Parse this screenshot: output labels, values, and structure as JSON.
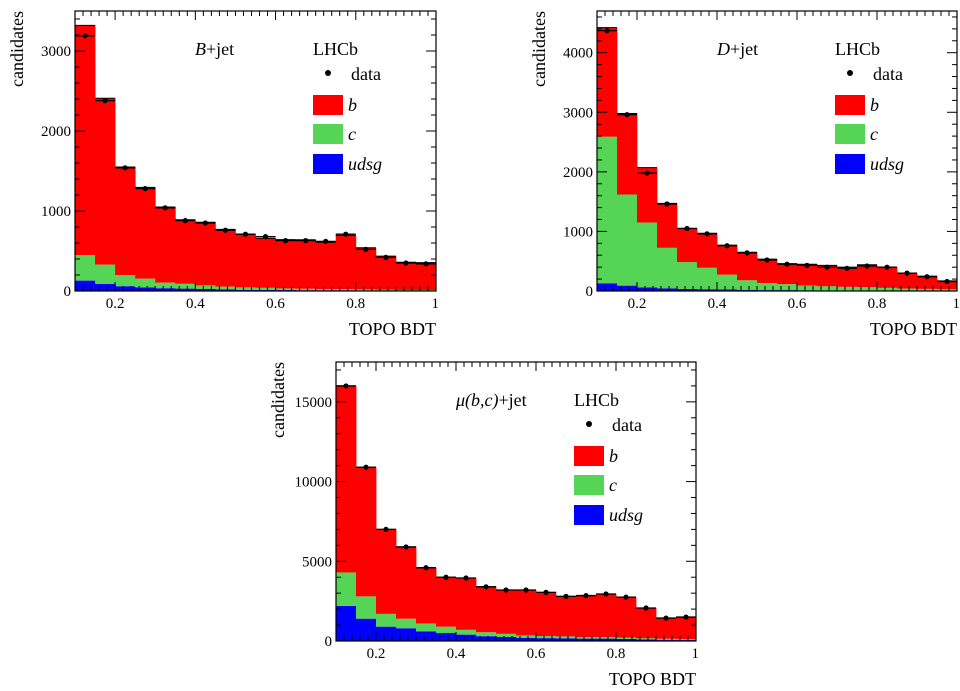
{
  "colors": {
    "b": "#ff0000",
    "c": "#55d455",
    "udsg": "#0000ff",
    "data": "#000000",
    "axis": "#000000"
  },
  "chart_data": [
    {
      "type": "bar",
      "stacked": true,
      "title": "",
      "label_main": "B",
      "label_suffix": "+jet",
      "experiment": "LHCb",
      "xlabel": "TOPO BDT",
      "ylabel": "candidates",
      "xlim": [
        0.1,
        1.0
      ],
      "ylim": [
        0,
        3500
      ],
      "xticks": [
        0.2,
        0.4,
        0.6,
        0.8,
        1
      ],
      "xtick_labels": [
        "0.2",
        "0.4",
        "0.6",
        "0.8",
        "1"
      ],
      "yticks": [
        0,
        1000,
        2000,
        3000
      ],
      "ytick_labels": [
        "0",
        "1000",
        "2000",
        "3000"
      ],
      "legend_position": "top-right",
      "legend": {
        "data": "data",
        "b": "b",
        "c": "c",
        "udsg": "udsg"
      },
      "bin_edges": [
        0.1,
        0.15,
        0.2,
        0.25,
        0.3,
        0.35,
        0.4,
        0.45,
        0.5,
        0.55,
        0.6,
        0.65,
        0.7,
        0.75,
        0.8,
        0.85,
        0.9,
        0.95,
        1.0
      ],
      "series": [
        {
          "name": "udsg",
          "values": [
            130,
            90,
            60,
            45,
            35,
            30,
            25,
            20,
            15,
            15,
            12,
            10,
            10,
            10,
            8,
            6,
            5,
            5
          ]
        },
        {
          "name": "c",
          "values": [
            320,
            240,
            140,
            110,
            70,
            60,
            45,
            35,
            30,
            25,
            20,
            18,
            15,
            15,
            12,
            10,
            8,
            8
          ]
        },
        {
          "name": "b",
          "values": [
            2870,
            2080,
            1350,
            1140,
            945,
            800,
            790,
            715,
            665,
            620,
            610,
            612,
            585,
            670,
            520,
            420,
            347,
            342
          ]
        }
      ],
      "data": {
        "name": "data",
        "values": [
          3190,
          2380,
          1540,
          1280,
          1040,
          880,
          850,
          760,
          710,
          680,
          630,
          630,
          620,
          710,
          520,
          420,
          350,
          340
        ]
      }
    },
    {
      "type": "bar",
      "stacked": true,
      "title": "",
      "label_main": "D",
      "label_suffix": "+jet",
      "experiment": "LHCb",
      "xlabel": "TOPO BDT",
      "ylabel": "candidates",
      "xlim": [
        0.1,
        1.0
      ],
      "ylim": [
        0,
        4700
      ],
      "xticks": [
        0.2,
        0.4,
        0.6,
        0.8,
        1
      ],
      "xtick_labels": [
        "0.2",
        "0.4",
        "0.6",
        "0.8",
        "1"
      ],
      "yticks": [
        0,
        1000,
        2000,
        3000,
        4000
      ],
      "ytick_labels": [
        "0",
        "1000",
        "2000",
        "3000",
        "4000"
      ],
      "legend_position": "top-right",
      "legend": {
        "data": "data",
        "b": "b",
        "c": "c",
        "udsg": "udsg"
      },
      "bin_edges": [
        0.1,
        0.15,
        0.2,
        0.25,
        0.3,
        0.35,
        0.4,
        0.45,
        0.5,
        0.55,
        0.6,
        0.65,
        0.7,
        0.75,
        0.8,
        0.85,
        0.9,
        0.95,
        1.0
      ],
      "series": [
        {
          "name": "udsg",
          "values": [
            130,
            90,
            60,
            45,
            35,
            30,
            25,
            20,
            15,
            15,
            12,
            10,
            10,
            10,
            8,
            6,
            5,
            5
          ]
        },
        {
          "name": "c",
          "values": [
            2460,
            1530,
            1090,
            680,
            450,
            360,
            250,
            160,
            120,
            100,
            80,
            70,
            60,
            55,
            45,
            35,
            30,
            25
          ]
        },
        {
          "name": "b",
          "values": [
            1830,
            1360,
            920,
            745,
            565,
            580,
            495,
            470,
            400,
            345,
            358,
            350,
            330,
            375,
            347,
            259,
            215,
            140
          ]
        }
      ],
      "data": {
        "name": "data",
        "values": [
          4370,
          2960,
          1980,
          1460,
          1050,
          960,
          760,
          640,
          520,
          450,
          430,
          400,
          380,
          420,
          400,
          300,
          240,
          160
        ]
      }
    },
    {
      "type": "bar",
      "stacked": true,
      "title": "",
      "label_main": "μ(b,c)",
      "label_suffix": "+jet",
      "experiment": "LHCb",
      "xlabel": "TOPO BDT",
      "ylabel": "candidates",
      "xlim": [
        0.1,
        1.0
      ],
      "ylim": [
        0,
        17500
      ],
      "xticks": [
        0.2,
        0.4,
        0.6,
        0.8,
        1
      ],
      "xtick_labels": [
        "0.2",
        "0.4",
        "0.6",
        "0.8",
        "1"
      ],
      "yticks": [
        0,
        5000,
        10000,
        15000
      ],
      "ytick_labels": [
        "0",
        "5000",
        "10000",
        "15000"
      ],
      "legend_position": "top-right",
      "legend": {
        "data": "data",
        "b": "b",
        "c": "c",
        "udsg": "udsg"
      },
      "bin_edges": [
        0.1,
        0.15,
        0.2,
        0.25,
        0.3,
        0.35,
        0.4,
        0.45,
        0.5,
        0.55,
        0.6,
        0.65,
        0.7,
        0.75,
        0.8,
        0.85,
        0.9,
        0.95,
        1.0
      ],
      "series": [
        {
          "name": "udsg",
          "values": [
            2200,
            1400,
            900,
            800,
            600,
            500,
            400,
            300,
            250,
            200,
            180,
            170,
            150,
            150,
            130,
            100,
            80,
            70
          ]
        },
        {
          "name": "c",
          "values": [
            2100,
            1400,
            800,
            600,
            500,
            400,
            300,
            250,
            200,
            150,
            130,
            120,
            100,
            100,
            80,
            70,
            60,
            50
          ]
        },
        {
          "name": "b",
          "values": [
            11700,
            8100,
            5300,
            4500,
            3500,
            3100,
            3250,
            2850,
            2750,
            2850,
            2740,
            2510,
            2600,
            2700,
            2540,
            1900,
            1300,
            1380
          ]
        }
      ],
      "data": {
        "name": "data",
        "values": [
          16000,
          10900,
          7000,
          5900,
          4600,
          4000,
          3950,
          3400,
          3200,
          3200,
          3050,
          2800,
          2850,
          2950,
          2750,
          2070,
          1440,
          1500
        ]
      }
    }
  ]
}
